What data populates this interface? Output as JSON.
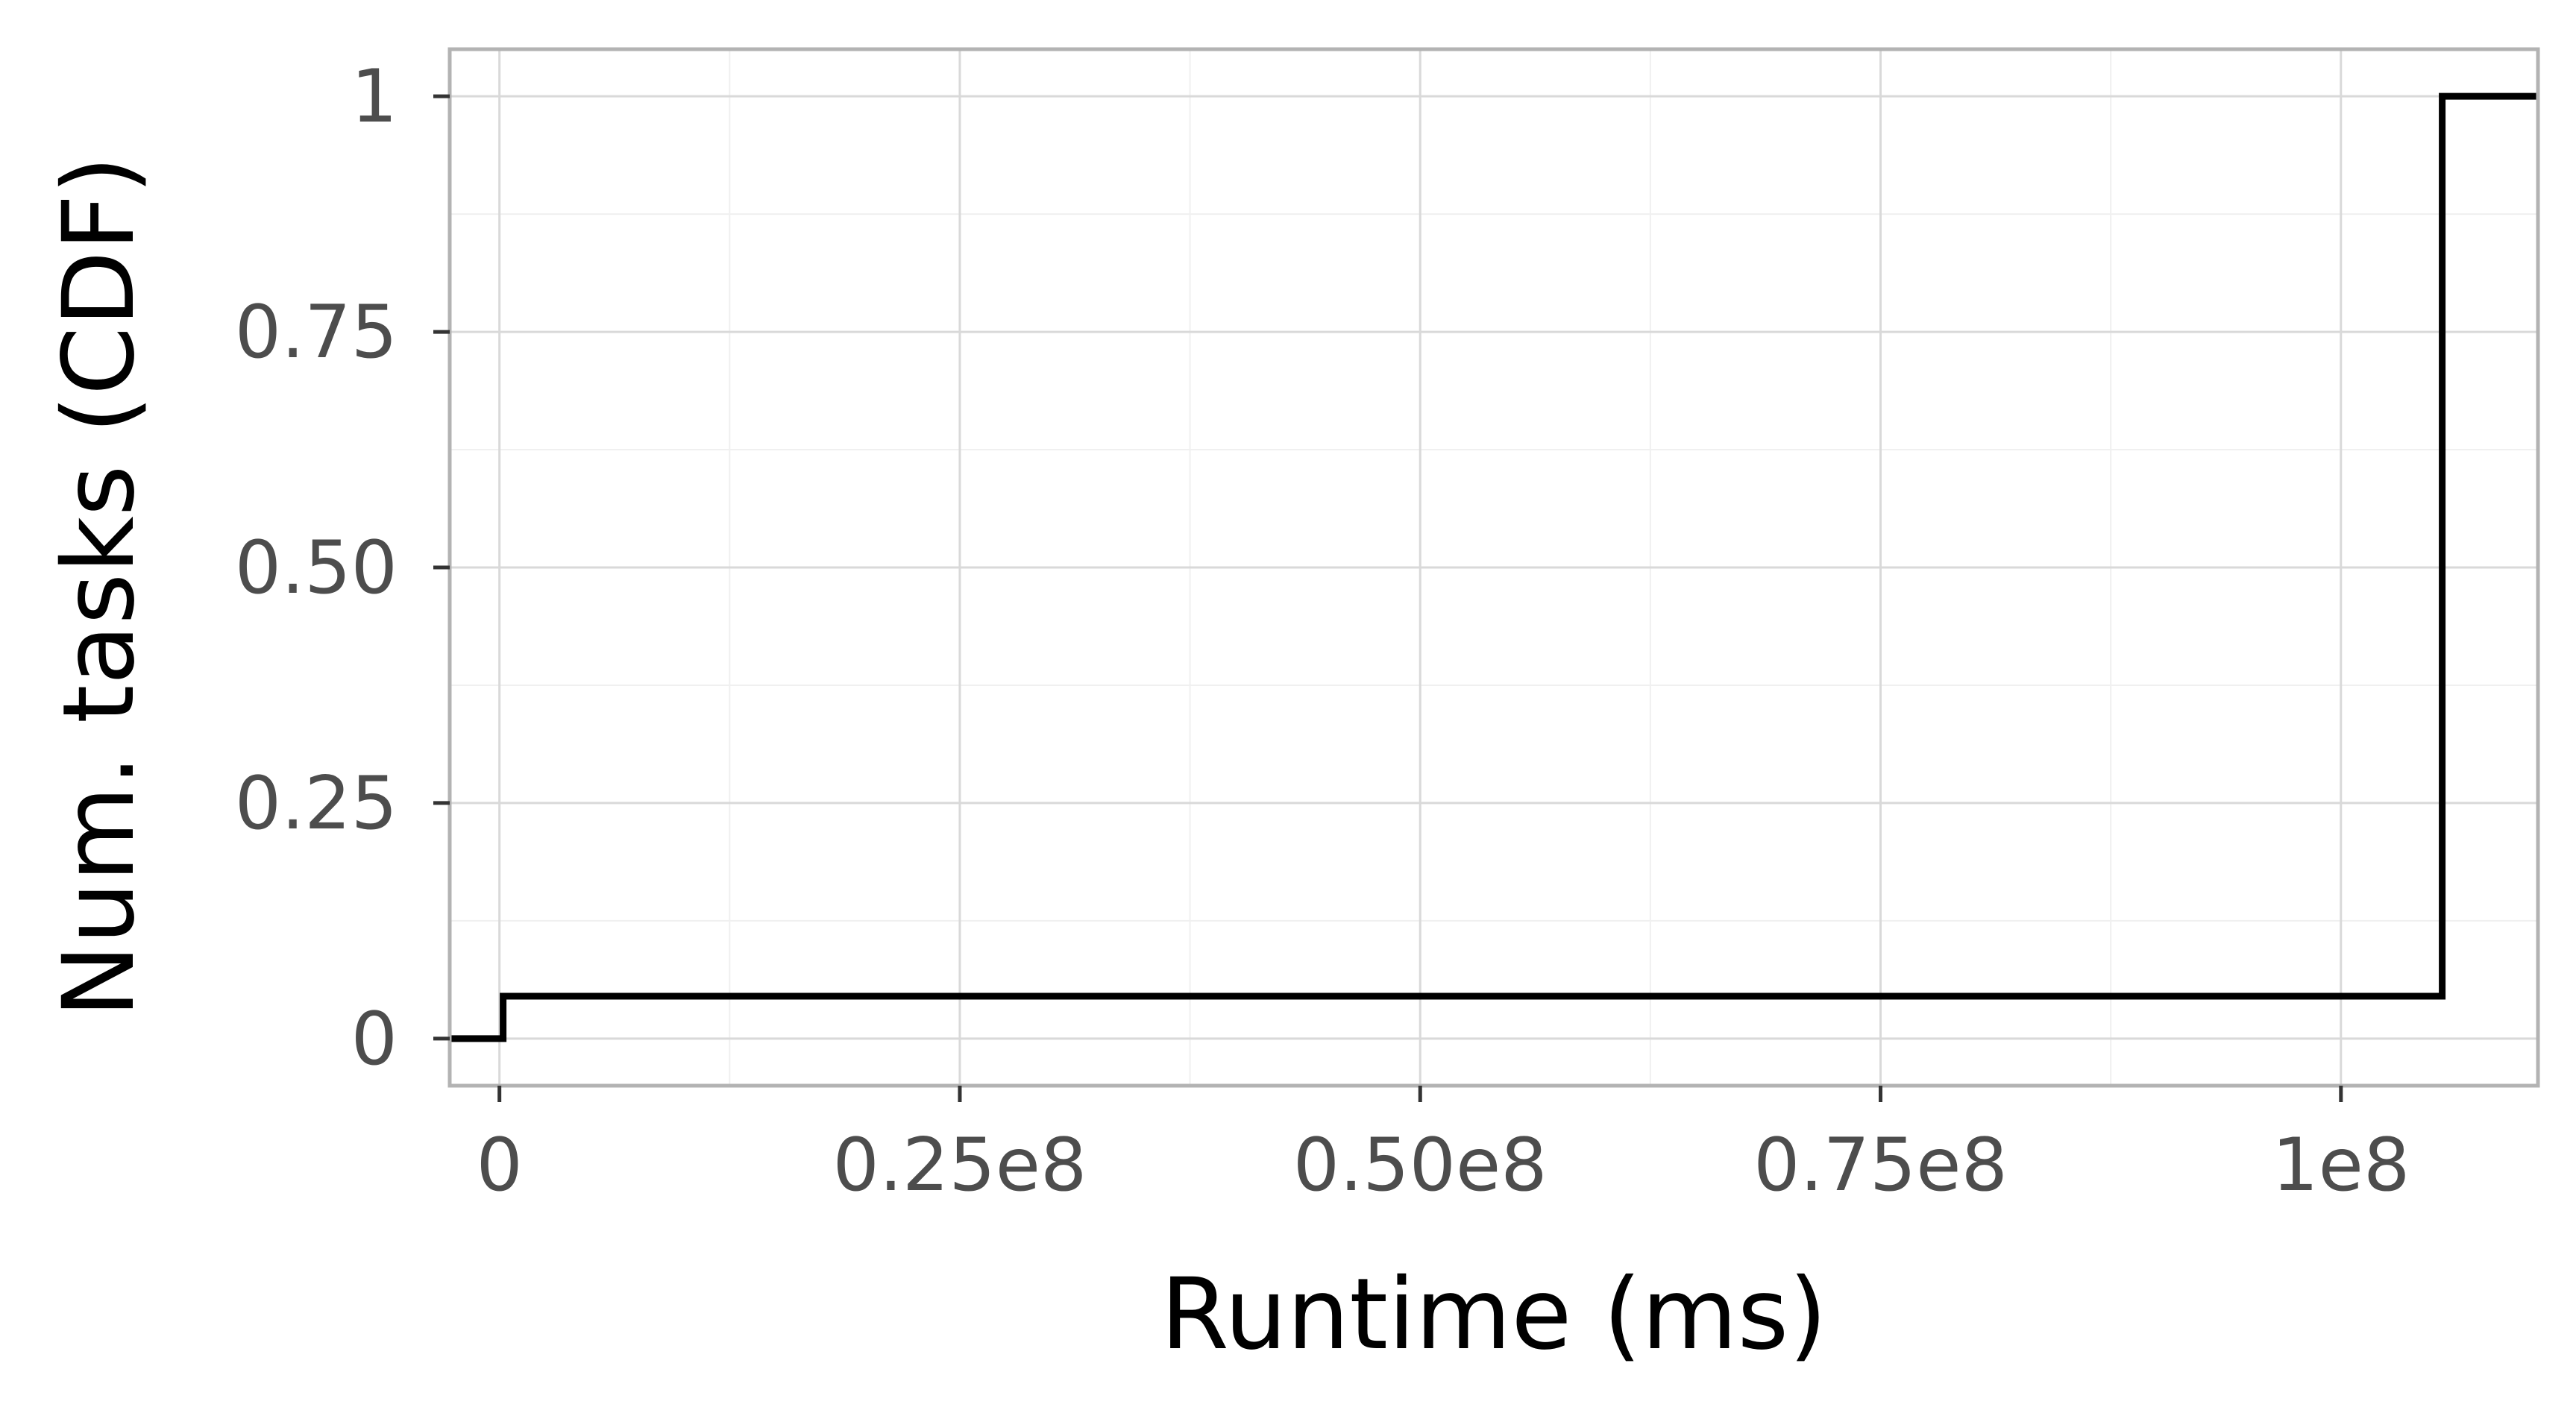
{
  "chart_data": {
    "type": "line",
    "step": true,
    "title": "",
    "xlabel": "Runtime (ms)",
    "ylabel": "Num. tasks (CDF)",
    "xlim": [
      -2700000.0,
      110700000.0
    ],
    "ylim": [
      -0.05,
      1.05
    ],
    "x_ticks": [
      {
        "value": 0,
        "label": "0"
      },
      {
        "value": 25000000,
        "label": "0.25e8"
      },
      {
        "value": 50000000,
        "label": "0.50e8"
      },
      {
        "value": 75000000,
        "label": "0.75e8"
      },
      {
        "value": 100000000,
        "label": "1e8"
      }
    ],
    "y_ticks": [
      {
        "value": 0,
        "label": "0"
      },
      {
        "value": 0.25,
        "label": "0.25"
      },
      {
        "value": 0.5,
        "label": "0.50"
      },
      {
        "value": 0.75,
        "label": "0.75"
      },
      {
        "value": 1,
        "label": "1"
      }
    ],
    "x_minor_ticks": [
      12500000,
      37500000,
      62500000,
      87500000
    ],
    "y_minor_ticks": [
      0.125,
      0.375,
      0.625,
      0.875
    ],
    "grid": true,
    "legend": "none",
    "series": [
      {
        "color": "#000000",
        "x": [
          -2700000.0,
          200000,
          200000,
          105500000,
          105500000,
          110700000.0
        ],
        "y": [
          0,
          0,
          0.045,
          0.045,
          1,
          1
        ]
      }
    ],
    "colors": {
      "panel_border": "#b3b3b3",
      "major_grid": "#d9d9d9",
      "minor_grid": "#f0f0f0",
      "tick_label": "#4d4d4d",
      "line": "#000000"
    }
  }
}
